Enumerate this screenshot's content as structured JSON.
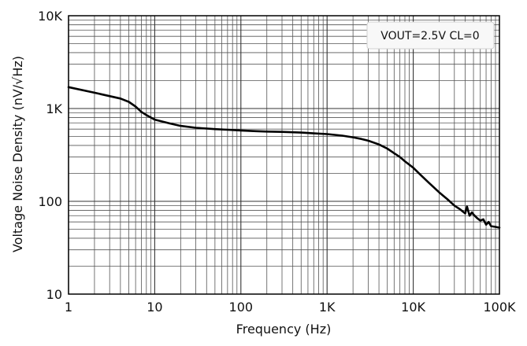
{
  "chart_data": {
    "type": "line",
    "title": "",
    "xlabel": "Frequency (Hz)",
    "ylabel": "Voltage Noise Density (nV/√Hz)",
    "xscale": "log",
    "yscale": "log",
    "xlim": [
      1,
      100000
    ],
    "ylim": [
      10,
      10000
    ],
    "grid": true,
    "x_ticks": [
      1,
      10,
      100,
      1000,
      10000,
      100000
    ],
    "x_tick_labels": [
      "1",
      "10",
      "100",
      "1K",
      "10K",
      "100K"
    ],
    "y_ticks": [
      10,
      100,
      1000,
      10000
    ],
    "y_tick_labels": [
      "10",
      "100",
      "1K",
      "10K"
    ],
    "legend": {
      "text": "VOUT=2.5V CL=0",
      "placement": "top-right"
    },
    "series": [
      {
        "name": "VOUT=2.5V CL=0",
        "x": [
          1,
          2,
          4,
          5,
          6,
          7,
          8,
          10,
          15,
          20,
          30,
          50,
          70,
          100,
          150,
          200,
          300,
          500,
          700,
          1000,
          1500,
          2000,
          2500,
          3000,
          4000,
          5000,
          6000,
          7000,
          8000,
          10000,
          12000,
          15000,
          20000,
          25000,
          30000,
          35000,
          40000,
          42000,
          45000,
          48000,
          50000,
          55000,
          60000,
          65000,
          70000,
          75000,
          80000,
          90000,
          100000
        ],
        "y": [
          1700,
          1480,
          1280,
          1180,
          1050,
          920,
          850,
          760,
          690,
          650,
          620,
          600,
          590,
          580,
          570,
          565,
          560,
          550,
          540,
          530,
          510,
          490,
          470,
          450,
          410,
          370,
          330,
          300,
          270,
          230,
          195,
          160,
          125,
          105,
          90,
          82,
          74,
          88,
          70,
          76,
          72,
          66,
          62,
          64,
          56,
          60,
          54,
          53,
          52
        ]
      }
    ]
  }
}
